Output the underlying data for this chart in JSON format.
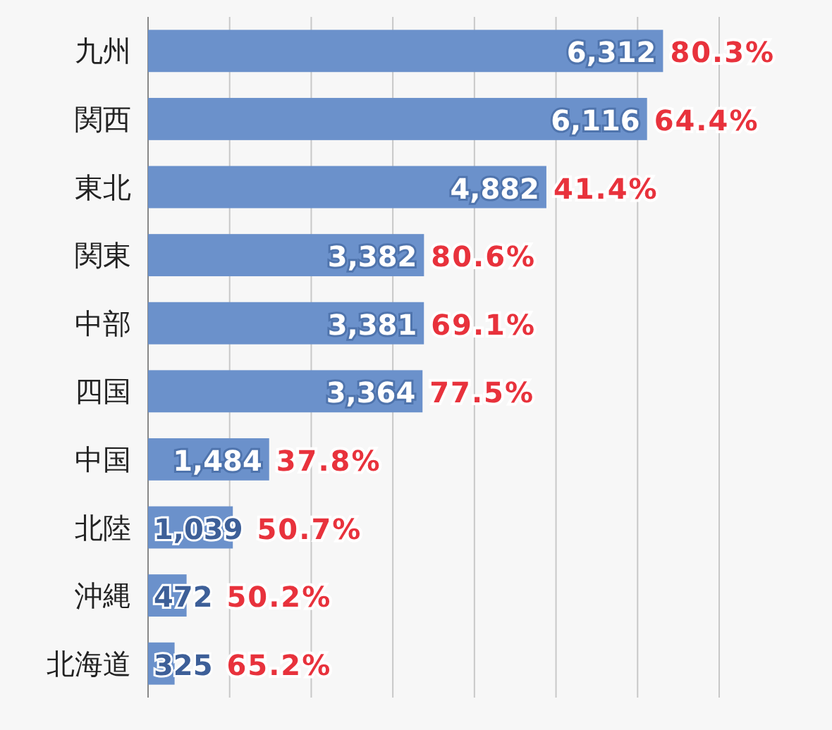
{
  "chart_data": {
    "type": "bar",
    "orientation": "horizontal",
    "categories": [
      "九州",
      "関西",
      "東北",
      "関東",
      "中部",
      "四国",
      "中国",
      "北陸",
      "沖縄",
      "北海道"
    ],
    "values": [
      6312,
      6116,
      4882,
      3382,
      3381,
      3364,
      1484,
      1039,
      472,
      325
    ],
    "color": "#6b91cb",
    "xlim": [
      0,
      7000
    ],
    "xticks": [
      {
        "value": 0,
        "label": null
      },
      {
        "value": 1000,
        "label": null
      },
      {
        "value": 2000,
        "label": null
      },
      {
        "value": 3000,
        "label": null
      },
      {
        "value": 4000,
        "label": null
      },
      {
        "value": 5000,
        "label": null
      },
      {
        "value": 6000,
        "label": null
      },
      {
        "value": 7000,
        "label": null
      }
    ],
    "tick_labels": "y",
    "grid": "x",
    "value_labels": [
      "6,312",
      "6,116",
      "4,882",
      "3,382",
      "3,381",
      "3,364",
      "1,484",
      "1,039",
      "472",
      "325"
    ],
    "annotations": [
      {
        "text": "80.3%",
        "x": 6312,
        "y": "九州"
      },
      {
        "text": "64.4%",
        "x": 6116,
        "y": "関西"
      },
      {
        "text": "41.4%",
        "x": 4882,
        "y": "東北"
      },
      {
        "text": "80.6%",
        "x": 3382,
        "y": "関東"
      },
      {
        "text": "69.1%",
        "x": 3381,
        "y": "中部"
      },
      {
        "text": "77.5%",
        "x": 3364,
        "y": "四国"
      },
      {
        "text": "37.8%",
        "x": 1484,
        "y": "中国"
      },
      {
        "text": "50.7%",
        "x": 1039,
        "y": "北陸"
      },
      {
        "text": "50.2%",
        "x": 472,
        "y": "沖縄"
      },
      {
        "text": "65.2%",
        "x": 325,
        "y": "北海道"
      }
    ]
  }
}
